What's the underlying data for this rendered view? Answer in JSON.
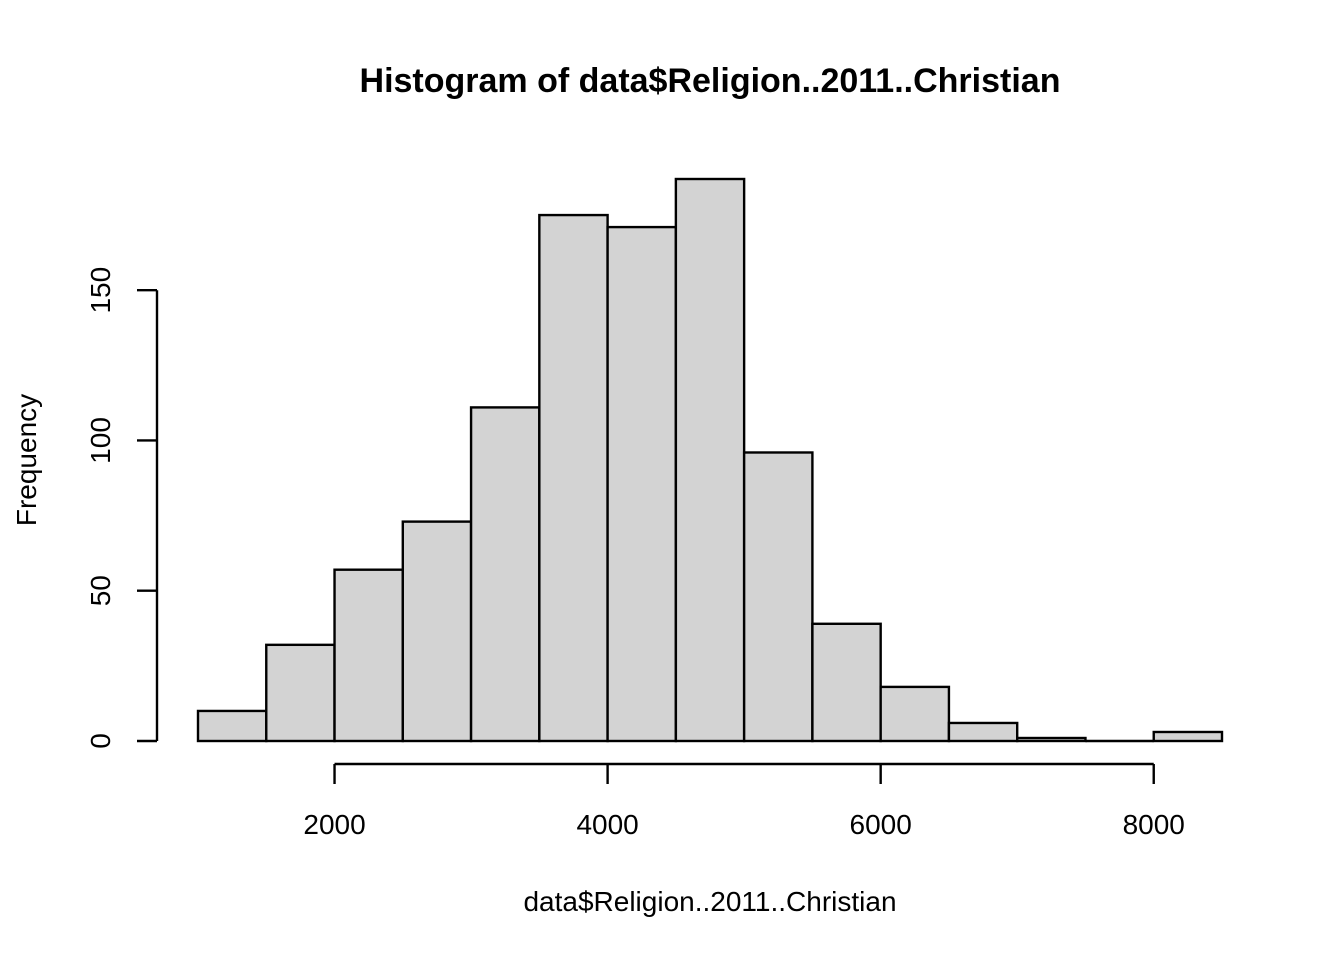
{
  "chart_data": {
    "type": "bar",
    "title": "Histogram of data$Religion..2011..Christian",
    "xlabel": "data$Religion..2011..Christian",
    "ylabel": "Frequency",
    "bins": [
      {
        "x0": 1000,
        "x1": 1500,
        "count": 10
      },
      {
        "x0": 1500,
        "x1": 2000,
        "count": 32
      },
      {
        "x0": 2000,
        "x1": 2500,
        "count": 57
      },
      {
        "x0": 2500,
        "x1": 3000,
        "count": 73
      },
      {
        "x0": 3000,
        "x1": 3500,
        "count": 111
      },
      {
        "x0": 3500,
        "x1": 4000,
        "count": 175
      },
      {
        "x0": 4000,
        "x1": 4500,
        "count": 171
      },
      {
        "x0": 4500,
        "x1": 5000,
        "count": 187
      },
      {
        "x0": 5000,
        "x1": 5500,
        "count": 96
      },
      {
        "x0": 5500,
        "x1": 6000,
        "count": 39
      },
      {
        "x0": 6000,
        "x1": 6500,
        "count": 18
      },
      {
        "x0": 6500,
        "x1": 7000,
        "count": 6
      },
      {
        "x0": 7000,
        "x1": 7500,
        "count": 1
      },
      {
        "x0": 7500,
        "x1": 8000,
        "count": 0
      },
      {
        "x0": 8000,
        "x1": 8500,
        "count": 3
      }
    ],
    "xticks": [
      "2000",
      "4000",
      "6000",
      "8000"
    ],
    "yticks": [
      "0",
      "50",
      "100",
      "150"
    ],
    "xlim": [
      1000,
      8500
    ],
    "ylim": [
      0,
      187
    ],
    "grid": false,
    "bar_color": "#d3d3d3",
    "edge_color": "#000000"
  }
}
